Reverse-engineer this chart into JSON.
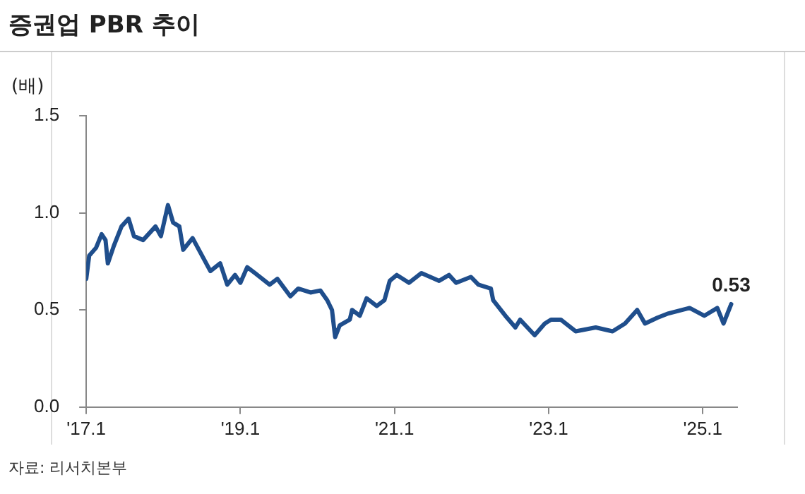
{
  "chart_data": {
    "type": "line",
    "title": "증권업 PBR 추이",
    "ylabel": "(배)",
    "annotations": [
      {
        "text": "0.53",
        "x": "2025-05-14",
        "y": 0.53
      },
      "자료: 리서치본부"
    ],
    "xlim": [
      "2017-01-01",
      "2025-06-12"
    ],
    "xticks": [
      {
        "value": "2017-01",
        "label": "'17.1"
      },
      {
        "value": "2019-01",
        "label": "'19.1"
      },
      {
        "value": "2021-01",
        "label": "'21.1"
      },
      {
        "value": "2023-01",
        "label": "'23.1"
      },
      {
        "value": "2025-01",
        "label": "'25.1"
      }
    ],
    "ylim": [
      0,
      1.5
    ],
    "yticks": [
      {
        "value": 0,
        "label": "0.0"
      },
      {
        "value": 0.5,
        "label": "0.5"
      },
      {
        "value": 1,
        "label": "1.0"
      },
      {
        "value": 1.5,
        "label": "1.5"
      }
    ],
    "grid": false,
    "legend": false,
    "marker": "none",
    "line_style": "solid",
    "series": [
      {
        "color": "#1f4e8c",
        "x": [
          "2017-01-01",
          "2017-01-15",
          "2017-02-17",
          "2017-03-13",
          "2017-04-01",
          "2017-04-12",
          "2017-05-10",
          "2017-06-16",
          "2017-07-19",
          "2017-08-14",
          "2017-09-27",
          "2017-11-25",
          "2017-12-20",
          "2018-01-23",
          "2018-02-17",
          "2018-03-16",
          "2018-04-04",
          "2018-05-18",
          "2018-08-11",
          "2018-09-27",
          "2018-10-30",
          "2018-12-06",
          "2019-01-01",
          "2019-02-03",
          "2019-03-09",
          "2019-05-18",
          "2019-06-24",
          "2019-08-25",
          "2019-10-01",
          "2019-11-29",
          "2020-01-15",
          "2020-02-17",
          "2020-03-09",
          "2020-03-24",
          "2020-04-15",
          "2020-06-02",
          "2020-06-13",
          "2020-07-19",
          "2020-08-21",
          "2020-10-08",
          "2020-11-14",
          "2020-12-09",
          "2021-01-12",
          "2021-03-09",
          "2021-05-07",
          "2021-07-30",
          "2021-09-16",
          "2021-10-19",
          "2021-12-28",
          "2022-02-03",
          "2022-04-01",
          "2022-04-12",
          "2022-06-09",
          "2022-07-26",
          "2022-08-18",
          "2022-10-26",
          "2022-12-13",
          "2023-01-12",
          "2023-02-28",
          "2023-05-07",
          "2023-08-11",
          "2023-10-30",
          "2023-12-28",
          "2024-02-25",
          "2024-04-01",
          "2024-05-29",
          "2024-07-15",
          "2024-10-30",
          "2025-01-08",
          "2025-03-09",
          "2025-04-08",
          "2025-05-14"
        ],
        "values": [
          0.66,
          0.78,
          0.82,
          0.89,
          0.86,
          0.74,
          0.83,
          0.93,
          0.97,
          0.88,
          0.86,
          0.93,
          0.88,
          1.04,
          0.95,
          0.93,
          0.81,
          0.87,
          0.7,
          0.74,
          0.63,
          0.68,
          0.64,
          0.72,
          0.69,
          0.63,
          0.66,
          0.57,
          0.61,
          0.59,
          0.6,
          0.55,
          0.5,
          0.36,
          0.42,
          0.45,
          0.5,
          0.47,
          0.56,
          0.52,
          0.55,
          0.65,
          0.68,
          0.64,
          0.69,
          0.65,
          0.68,
          0.64,
          0.67,
          0.63,
          0.61,
          0.55,
          0.47,
          0.41,
          0.45,
          0.37,
          0.43,
          0.45,
          0.45,
          0.39,
          0.41,
          0.39,
          0.43,
          0.5,
          0.43,
          0.46,
          0.48,
          0.51,
          0.47,
          0.51,
          0.43,
          0.53
        ]
      }
    ]
  }
}
